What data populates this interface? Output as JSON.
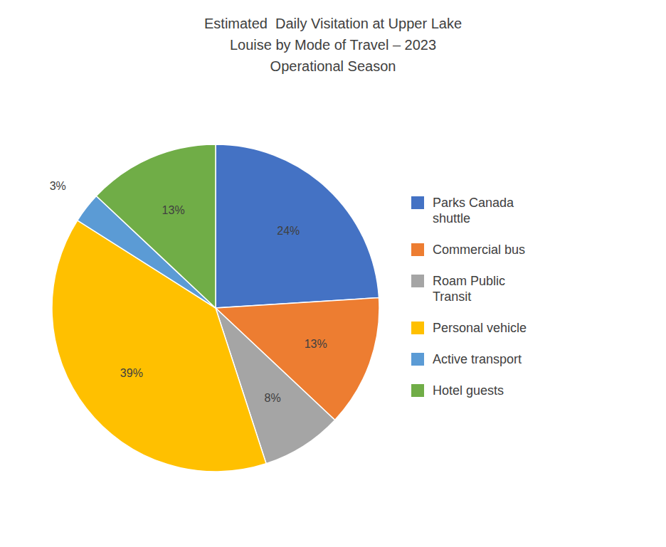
{
  "chart_data": {
    "type": "pie",
    "title": "Estimated  Daily Visitation at Upper Lake\nLouise by Mode of Travel – 2023\nOperational Season",
    "categories": [
      "Parks Canada\nshuttle",
      "Commercial bus",
      "Roam Public\nTransit",
      "Personal vehicle",
      "Active transport",
      "Hotel guests"
    ],
    "values": [
      24,
      13,
      8,
      39,
      3,
      13
    ],
    "value_labels": [
      "24%",
      "13%",
      "8%",
      "39%",
      "3%",
      "13%"
    ],
    "colors": [
      "#4472C4",
      "#ED7D31",
      "#A5A5A5",
      "#FFC000",
      "#5B9BD5",
      "#70AD47"
    ],
    "data_labels": true,
    "legend": "right"
  }
}
